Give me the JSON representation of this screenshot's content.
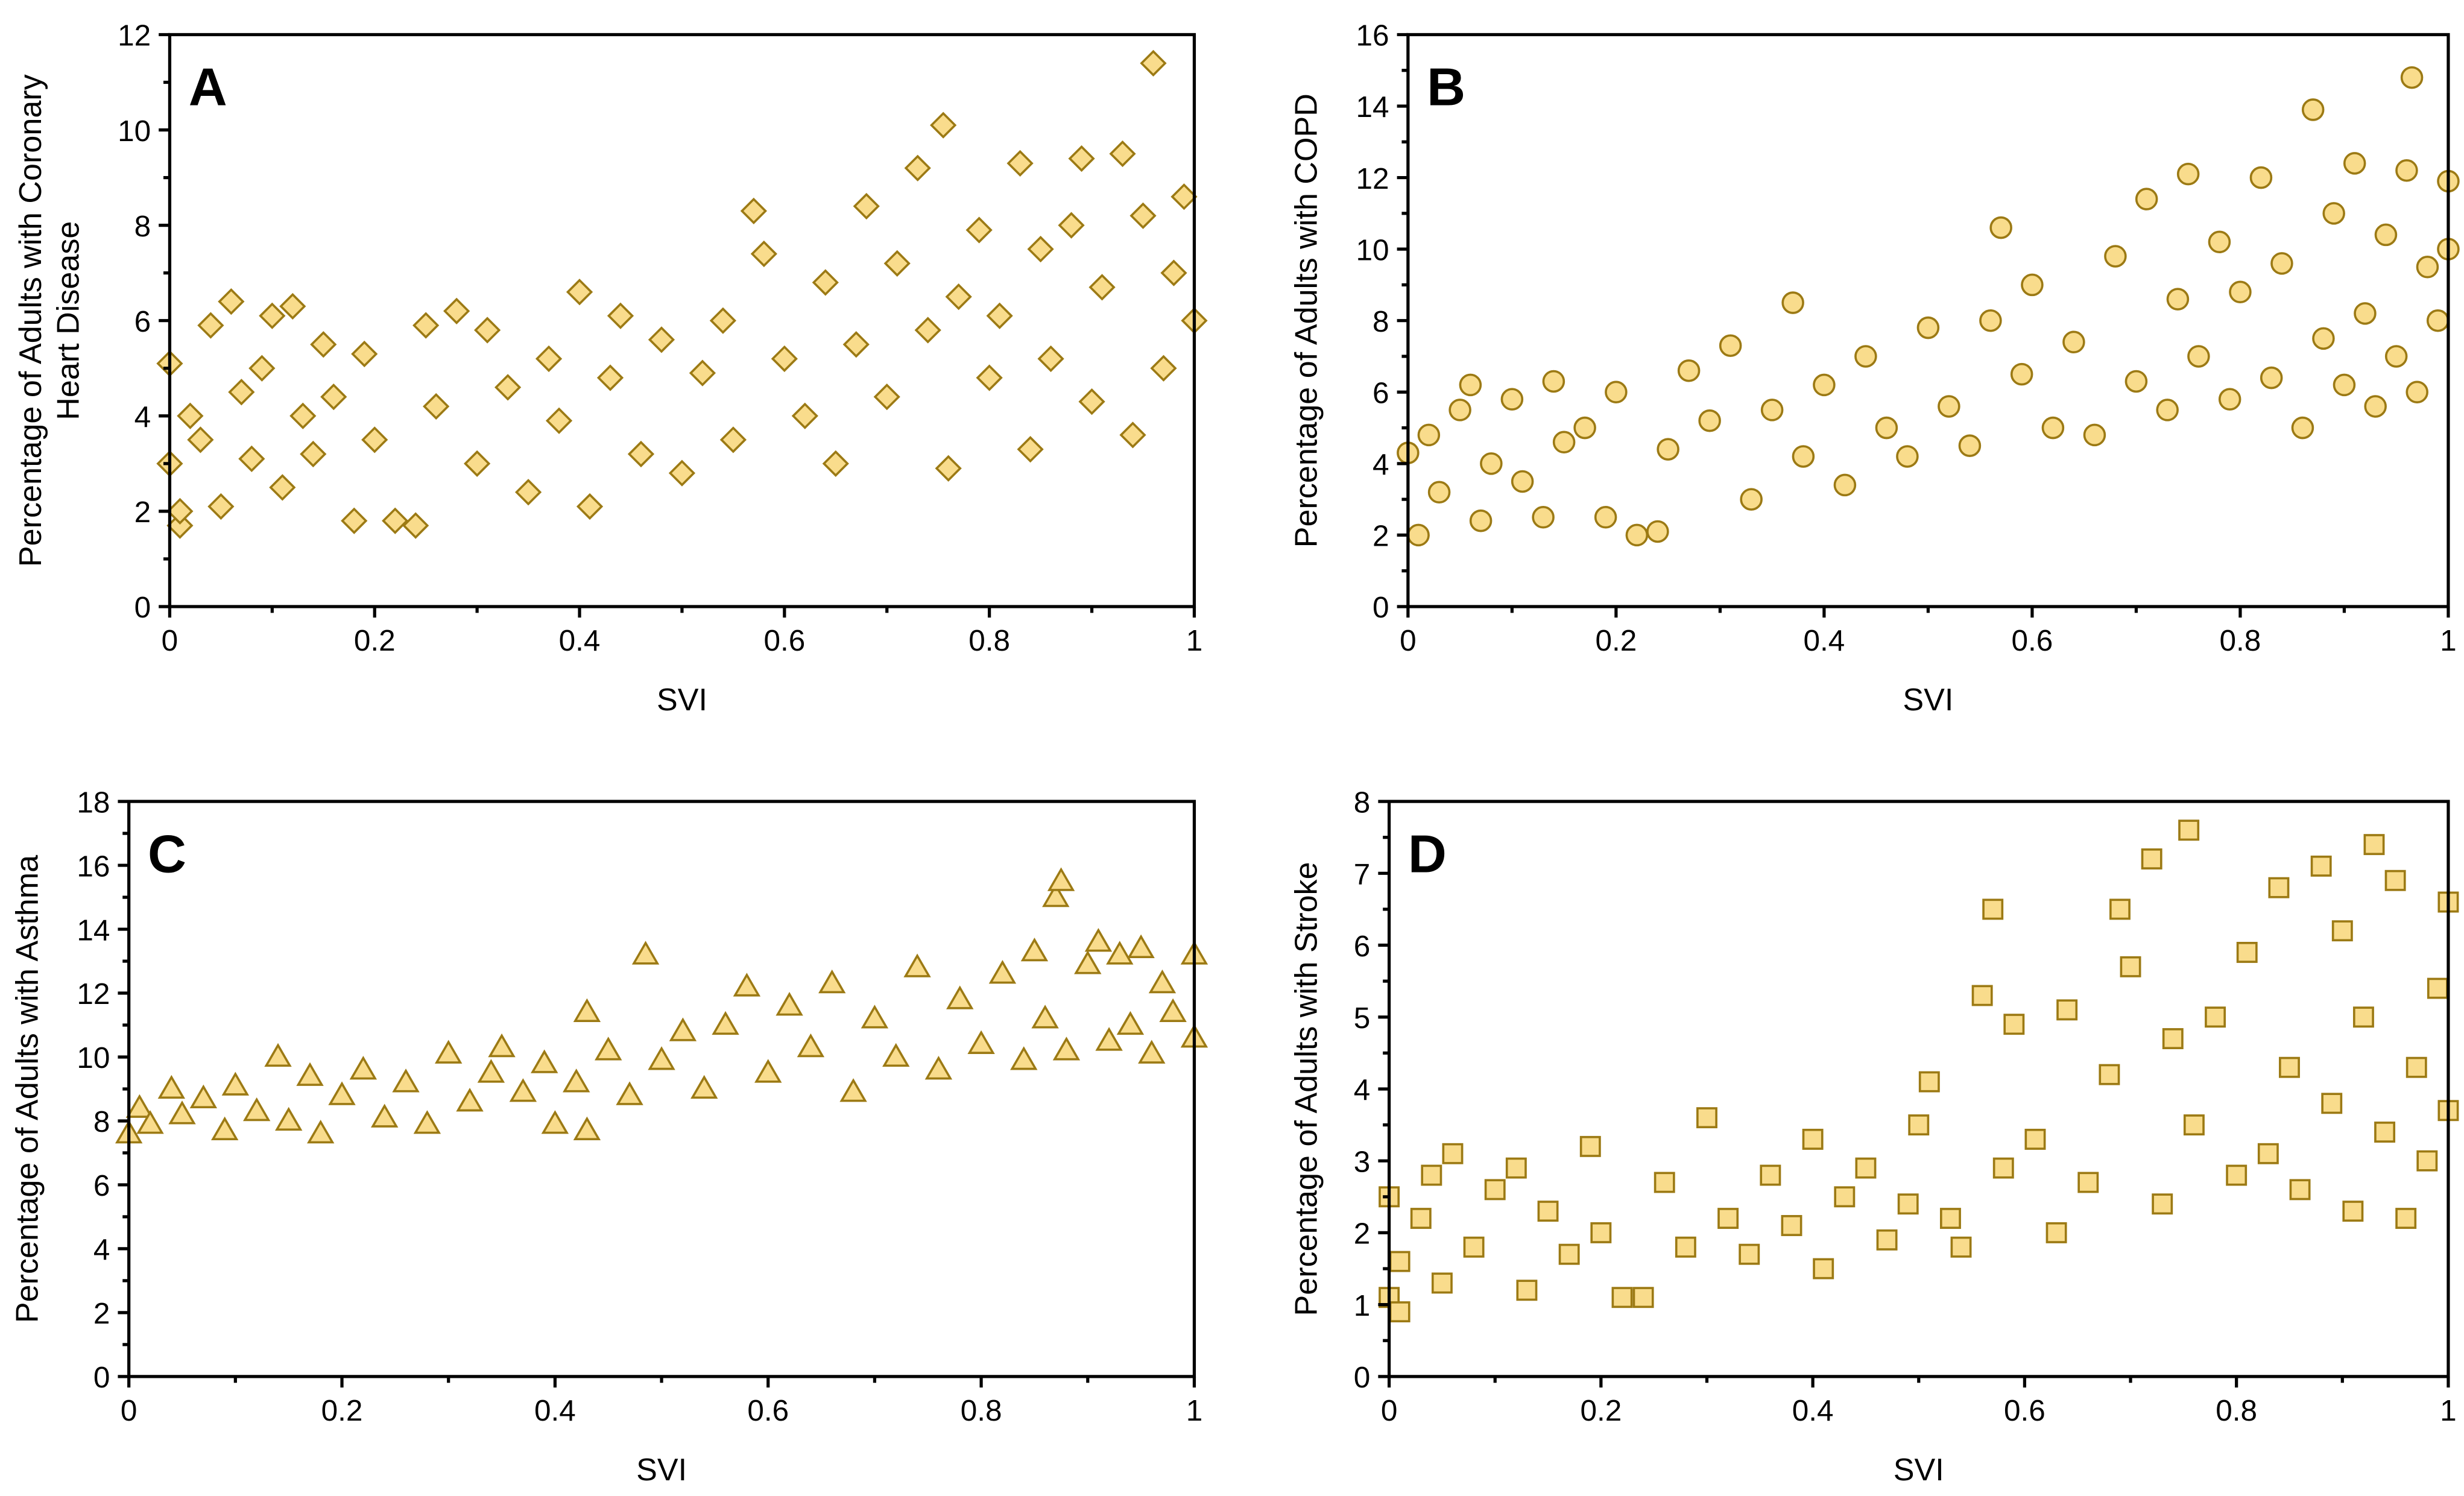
{
  "marker_fill": "#F9DC8C",
  "marker_stroke": "#9C7A14",
  "chart_data": [
    {
      "type": "scatter",
      "panel": "A",
      "marker": "diamond",
      "xlabel": "SVI",
      "ylabel": [
        "Percentage of Adults with Coronary",
        "Heart Disease"
      ],
      "xlim": [
        0,
        1
      ],
      "ylim": [
        0,
        12
      ],
      "xticks": [
        "0",
        "0.2",
        "0.4",
        "0.6",
        "0.8",
        "1"
      ],
      "yticks": [
        "0",
        "2",
        "4",
        "6",
        "8",
        "10",
        "12"
      ],
      "points": [
        [
          0.0,
          5.1
        ],
        [
          0.0,
          3.0
        ],
        [
          0.01,
          1.7
        ],
        [
          0.01,
          2.0
        ],
        [
          0.02,
          4.0
        ],
        [
          0.03,
          3.5
        ],
        [
          0.04,
          5.9
        ],
        [
          0.05,
          2.1
        ],
        [
          0.06,
          6.4
        ],
        [
          0.07,
          4.5
        ],
        [
          0.08,
          3.1
        ],
        [
          0.09,
          5.0
        ],
        [
          0.1,
          6.1
        ],
        [
          0.11,
          2.5
        ],
        [
          0.12,
          6.3
        ],
        [
          0.13,
          4.0
        ],
        [
          0.14,
          3.2
        ],
        [
          0.15,
          5.5
        ],
        [
          0.16,
          4.4
        ],
        [
          0.18,
          1.8
        ],
        [
          0.19,
          5.3
        ],
        [
          0.2,
          3.5
        ],
        [
          0.22,
          1.8
        ],
        [
          0.24,
          1.7
        ],
        [
          0.25,
          5.9
        ],
        [
          0.26,
          4.2
        ],
        [
          0.28,
          6.2
        ],
        [
          0.3,
          3.0
        ],
        [
          0.31,
          5.8
        ],
        [
          0.33,
          4.6
        ],
        [
          0.35,
          2.4
        ],
        [
          0.37,
          5.2
        ],
        [
          0.38,
          3.9
        ],
        [
          0.4,
          6.6
        ],
        [
          0.41,
          2.1
        ],
        [
          0.43,
          4.8
        ],
        [
          0.44,
          6.1
        ],
        [
          0.46,
          3.2
        ],
        [
          0.48,
          5.6
        ],
        [
          0.5,
          2.8
        ],
        [
          0.52,
          4.9
        ],
        [
          0.54,
          6.0
        ],
        [
          0.55,
          3.5
        ],
        [
          0.57,
          8.3
        ],
        [
          0.58,
          7.4
        ],
        [
          0.6,
          5.2
        ],
        [
          0.62,
          4.0
        ],
        [
          0.64,
          6.8
        ],
        [
          0.65,
          3.0
        ],
        [
          0.67,
          5.5
        ],
        [
          0.68,
          8.4
        ],
        [
          0.7,
          4.4
        ],
        [
          0.71,
          7.2
        ],
        [
          0.73,
          9.2
        ],
        [
          0.74,
          5.8
        ],
        [
          0.755,
          10.1
        ],
        [
          0.76,
          2.9
        ],
        [
          0.77,
          6.5
        ],
        [
          0.79,
          7.9
        ],
        [
          0.8,
          4.8
        ],
        [
          0.81,
          6.1
        ],
        [
          0.83,
          9.3
        ],
        [
          0.84,
          3.3
        ],
        [
          0.85,
          7.5
        ],
        [
          0.86,
          5.2
        ],
        [
          0.88,
          8.0
        ],
        [
          0.89,
          9.4
        ],
        [
          0.9,
          4.3
        ],
        [
          0.91,
          6.7
        ],
        [
          0.93,
          9.5
        ],
        [
          0.94,
          3.6
        ],
        [
          0.95,
          8.2
        ],
        [
          0.96,
          11.4
        ],
        [
          0.97,
          5.0
        ],
        [
          0.98,
          7.0
        ],
        [
          0.99,
          8.6
        ],
        [
          1.0,
          6.0
        ]
      ]
    },
    {
      "type": "scatter",
      "panel": "B",
      "marker": "circle",
      "xlabel": "SVI",
      "ylabel": [
        "Percentage of Adults with COPD"
      ],
      "xlim": [
        0,
        1
      ],
      "ylim": [
        0,
        16
      ],
      "xticks": [
        "0",
        "0.2",
        "0.4",
        "0.6",
        "0.8",
        "1"
      ],
      "yticks": [
        "0",
        "2",
        "4",
        "6",
        "8",
        "10",
        "12",
        "14",
        "16"
      ],
      "points": [
        [
          0.0,
          4.3
        ],
        [
          0.01,
          2.0
        ],
        [
          0.02,
          4.8
        ],
        [
          0.03,
          3.2
        ],
        [
          0.05,
          5.5
        ],
        [
          0.06,
          6.2
        ],
        [
          0.07,
          2.4
        ],
        [
          0.08,
          4.0
        ],
        [
          0.1,
          5.8
        ],
        [
          0.11,
          3.5
        ],
        [
          0.13,
          2.5
        ],
        [
          0.14,
          6.3
        ],
        [
          0.15,
          4.6
        ],
        [
          0.17,
          5.0
        ],
        [
          0.19,
          2.5
        ],
        [
          0.2,
          6.0
        ],
        [
          0.22,
          2.0
        ],
        [
          0.24,
          2.1
        ],
        [
          0.25,
          4.4
        ],
        [
          0.27,
          6.6
        ],
        [
          0.29,
          5.2
        ],
        [
          0.31,
          7.3
        ],
        [
          0.33,
          3.0
        ],
        [
          0.35,
          5.5
        ],
        [
          0.37,
          8.5
        ],
        [
          0.38,
          4.2
        ],
        [
          0.4,
          6.2
        ],
        [
          0.42,
          3.4
        ],
        [
          0.44,
          7.0
        ],
        [
          0.46,
          5.0
        ],
        [
          0.48,
          4.2
        ],
        [
          0.5,
          7.8
        ],
        [
          0.52,
          5.6
        ],
        [
          0.54,
          4.5
        ],
        [
          0.56,
          8.0
        ],
        [
          0.57,
          10.6
        ],
        [
          0.59,
          6.5
        ],
        [
          0.6,
          9.0
        ],
        [
          0.62,
          5.0
        ],
        [
          0.64,
          7.4
        ],
        [
          0.66,
          4.8
        ],
        [
          0.68,
          9.8
        ],
        [
          0.7,
          6.3
        ],
        [
          0.71,
          11.4
        ],
        [
          0.73,
          5.5
        ],
        [
          0.74,
          8.6
        ],
        [
          0.75,
          12.1
        ],
        [
          0.76,
          7.0
        ],
        [
          0.78,
          10.2
        ],
        [
          0.79,
          5.8
        ],
        [
          0.8,
          8.8
        ],
        [
          0.82,
          12.0
        ],
        [
          0.83,
          6.4
        ],
        [
          0.84,
          9.6
        ],
        [
          0.86,
          5.0
        ],
        [
          0.87,
          13.9
        ],
        [
          0.88,
          7.5
        ],
        [
          0.89,
          11.0
        ],
        [
          0.9,
          6.2
        ],
        [
          0.91,
          12.4
        ],
        [
          0.92,
          8.2
        ],
        [
          0.93,
          5.6
        ],
        [
          0.94,
          10.4
        ],
        [
          0.95,
          7.0
        ],
        [
          0.96,
          12.2
        ],
        [
          0.965,
          14.8
        ],
        [
          0.97,
          6.0
        ],
        [
          0.98,
          9.5
        ],
        [
          0.99,
          8.0
        ],
        [
          1.0,
          11.9
        ],
        [
          1.0,
          10.0
        ]
      ]
    },
    {
      "type": "scatter",
      "panel": "C",
      "marker": "triangle",
      "xlabel": "SVI",
      "ylabel": [
        "Percentage of Adults with Asthma"
      ],
      "xlim": [
        0,
        1
      ],
      "ylim": [
        0,
        18
      ],
      "xticks": [
        "0",
        "0.2",
        "0.4",
        "0.6",
        "0.8",
        "1"
      ],
      "yticks": [
        "0",
        "2",
        "4",
        "6",
        "8",
        "10",
        "12",
        "14",
        "16",
        "18"
      ],
      "points": [
        [
          0.0,
          7.6
        ],
        [
          0.01,
          8.4
        ],
        [
          0.02,
          7.9
        ],
        [
          0.04,
          9.0
        ],
        [
          0.05,
          8.2
        ],
        [
          0.07,
          8.7
        ],
        [
          0.09,
          7.7
        ],
        [
          0.1,
          9.1
        ],
        [
          0.12,
          8.3
        ],
        [
          0.14,
          10.0
        ],
        [
          0.15,
          8.0
        ],
        [
          0.17,
          9.4
        ],
        [
          0.18,
          7.6
        ],
        [
          0.2,
          8.8
        ],
        [
          0.22,
          9.6
        ],
        [
          0.24,
          8.1
        ],
        [
          0.26,
          9.2
        ],
        [
          0.28,
          7.9
        ],
        [
          0.3,
          10.1
        ],
        [
          0.32,
          8.6
        ],
        [
          0.34,
          9.5
        ],
        [
          0.35,
          10.3
        ],
        [
          0.37,
          8.9
        ],
        [
          0.39,
          9.8
        ],
        [
          0.4,
          7.9
        ],
        [
          0.42,
          9.2
        ],
        [
          0.43,
          11.4
        ],
        [
          0.43,
          7.7
        ],
        [
          0.45,
          10.2
        ],
        [
          0.47,
          8.8
        ],
        [
          0.485,
          13.2
        ],
        [
          0.5,
          9.9
        ],
        [
          0.52,
          10.8
        ],
        [
          0.54,
          9.0
        ],
        [
          0.56,
          11.0
        ],
        [
          0.58,
          12.2
        ],
        [
          0.6,
          9.5
        ],
        [
          0.62,
          11.6
        ],
        [
          0.64,
          10.3
        ],
        [
          0.66,
          12.3
        ],
        [
          0.68,
          8.9
        ],
        [
          0.7,
          11.2
        ],
        [
          0.72,
          10.0
        ],
        [
          0.74,
          12.8
        ],
        [
          0.76,
          9.6
        ],
        [
          0.78,
          11.8
        ],
        [
          0.8,
          10.4
        ],
        [
          0.82,
          12.6
        ],
        [
          0.84,
          9.9
        ],
        [
          0.85,
          13.3
        ],
        [
          0.86,
          11.2
        ],
        [
          0.87,
          15.0
        ],
        [
          0.875,
          15.5
        ],
        [
          0.88,
          10.2
        ],
        [
          0.9,
          12.9
        ],
        [
          0.91,
          13.6
        ],
        [
          0.92,
          10.5
        ],
        [
          0.93,
          13.2
        ],
        [
          0.94,
          11.0
        ],
        [
          0.95,
          13.4
        ],
        [
          0.96,
          10.1
        ],
        [
          0.97,
          12.3
        ],
        [
          0.98,
          11.4
        ],
        [
          1.0,
          13.2
        ],
        [
          1.0,
          10.6
        ]
      ]
    },
    {
      "type": "scatter",
      "panel": "D",
      "marker": "square",
      "xlabel": "SVI",
      "ylabel": [
        "Percentage of Adults with Stroke"
      ],
      "xlim": [
        0,
        1
      ],
      "ylim": [
        0,
        8
      ],
      "xticks": [
        "0",
        "0.2",
        "0.4",
        "0.6",
        "0.8",
        "1"
      ],
      "yticks": [
        "0",
        "1",
        "2",
        "3",
        "4",
        "5",
        "6",
        "7",
        "8"
      ],
      "points": [
        [
          0.0,
          2.5
        ],
        [
          0.0,
          1.1
        ],
        [
          0.01,
          1.6
        ],
        [
          0.01,
          0.9
        ],
        [
          0.03,
          2.2
        ],
        [
          0.04,
          2.8
        ],
        [
          0.05,
          1.3
        ],
        [
          0.06,
          3.1
        ],
        [
          0.08,
          1.8
        ],
        [
          0.1,
          2.6
        ],
        [
          0.12,
          2.9
        ],
        [
          0.13,
          1.2
        ],
        [
          0.15,
          2.3
        ],
        [
          0.17,
          1.7
        ],
        [
          0.19,
          3.2
        ],
        [
          0.2,
          2.0
        ],
        [
          0.22,
          1.1
        ],
        [
          0.24,
          1.1
        ],
        [
          0.26,
          2.7
        ],
        [
          0.28,
          1.8
        ],
        [
          0.3,
          3.6
        ],
        [
          0.32,
          2.2
        ],
        [
          0.34,
          1.7
        ],
        [
          0.36,
          2.8
        ],
        [
          0.38,
          2.1
        ],
        [
          0.4,
          3.3
        ],
        [
          0.41,
          1.5
        ],
        [
          0.43,
          2.5
        ],
        [
          0.45,
          2.9
        ],
        [
          0.47,
          1.9
        ],
        [
          0.49,
          2.4
        ],
        [
          0.5,
          3.5
        ],
        [
          0.51,
          4.1
        ],
        [
          0.53,
          2.2
        ],
        [
          0.54,
          1.8
        ],
        [
          0.56,
          5.3
        ],
        [
          0.57,
          6.5
        ],
        [
          0.58,
          2.9
        ],
        [
          0.59,
          4.9
        ],
        [
          0.61,
          3.3
        ],
        [
          0.63,
          2.0
        ],
        [
          0.64,
          5.1
        ],
        [
          0.66,
          2.7
        ],
        [
          0.68,
          4.2
        ],
        [
          0.69,
          6.5
        ],
        [
          0.7,
          5.7
        ],
        [
          0.72,
          7.2
        ],
        [
          0.73,
          2.4
        ],
        [
          0.74,
          4.7
        ],
        [
          0.755,
          7.6
        ],
        [
          0.76,
          3.5
        ],
        [
          0.78,
          5.0
        ],
        [
          0.8,
          2.8
        ],
        [
          0.81,
          5.9
        ],
        [
          0.83,
          3.1
        ],
        [
          0.84,
          6.8
        ],
        [
          0.85,
          4.3
        ],
        [
          0.86,
          2.6
        ],
        [
          0.88,
          7.1
        ],
        [
          0.89,
          3.8
        ],
        [
          0.9,
          6.2
        ],
        [
          0.91,
          2.3
        ],
        [
          0.92,
          5.0
        ],
        [
          0.93,
          7.4
        ],
        [
          0.94,
          3.4
        ],
        [
          0.95,
          6.9
        ],
        [
          0.96,
          2.2
        ],
        [
          0.97,
          4.3
        ],
        [
          0.98,
          3.0
        ],
        [
          0.99,
          5.4
        ],
        [
          1.0,
          6.6
        ],
        [
          1.0,
          3.7
        ]
      ]
    }
  ]
}
